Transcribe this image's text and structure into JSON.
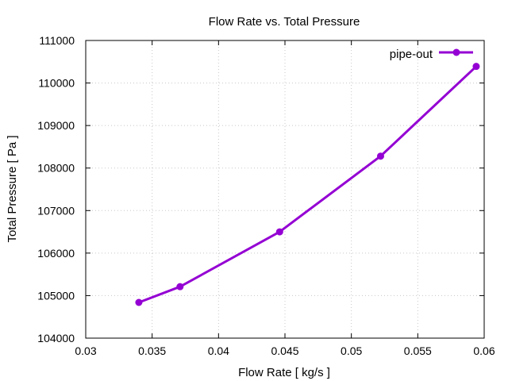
{
  "chart_data": {
    "type": "line",
    "title": "Flow Rate vs. Total Pressure",
    "xlabel": "Flow Rate [ kg/s ]",
    "ylabel": "Total Pressure [ Pa ]",
    "xlim": [
      0.03,
      0.06
    ],
    "ylim": [
      104000,
      111000
    ],
    "x_ticks": [
      0.03,
      0.035,
      0.04,
      0.045,
      0.05,
      0.055,
      0.06
    ],
    "x_tick_labels": [
      "0.03",
      "0.035",
      "0.04",
      "0.045",
      "0.05",
      "0.055",
      "0.06"
    ],
    "y_ticks": [
      104000,
      105000,
      106000,
      107000,
      108000,
      109000,
      110000,
      111000
    ],
    "y_tick_labels": [
      "104000",
      "105000",
      "106000",
      "107000",
      "108000",
      "109000",
      "110000",
      "111000"
    ],
    "grid": true,
    "legend_position": "top-right",
    "series": [
      {
        "name": "pipe-out",
        "color": "#9400d3",
        "marker": "circle",
        "x": [
          0.034,
          0.0371,
          0.0446,
          0.0522,
          0.0594
        ],
        "y": [
          104840,
          105210,
          106500,
          108280,
          110390
        ]
      }
    ]
  }
}
